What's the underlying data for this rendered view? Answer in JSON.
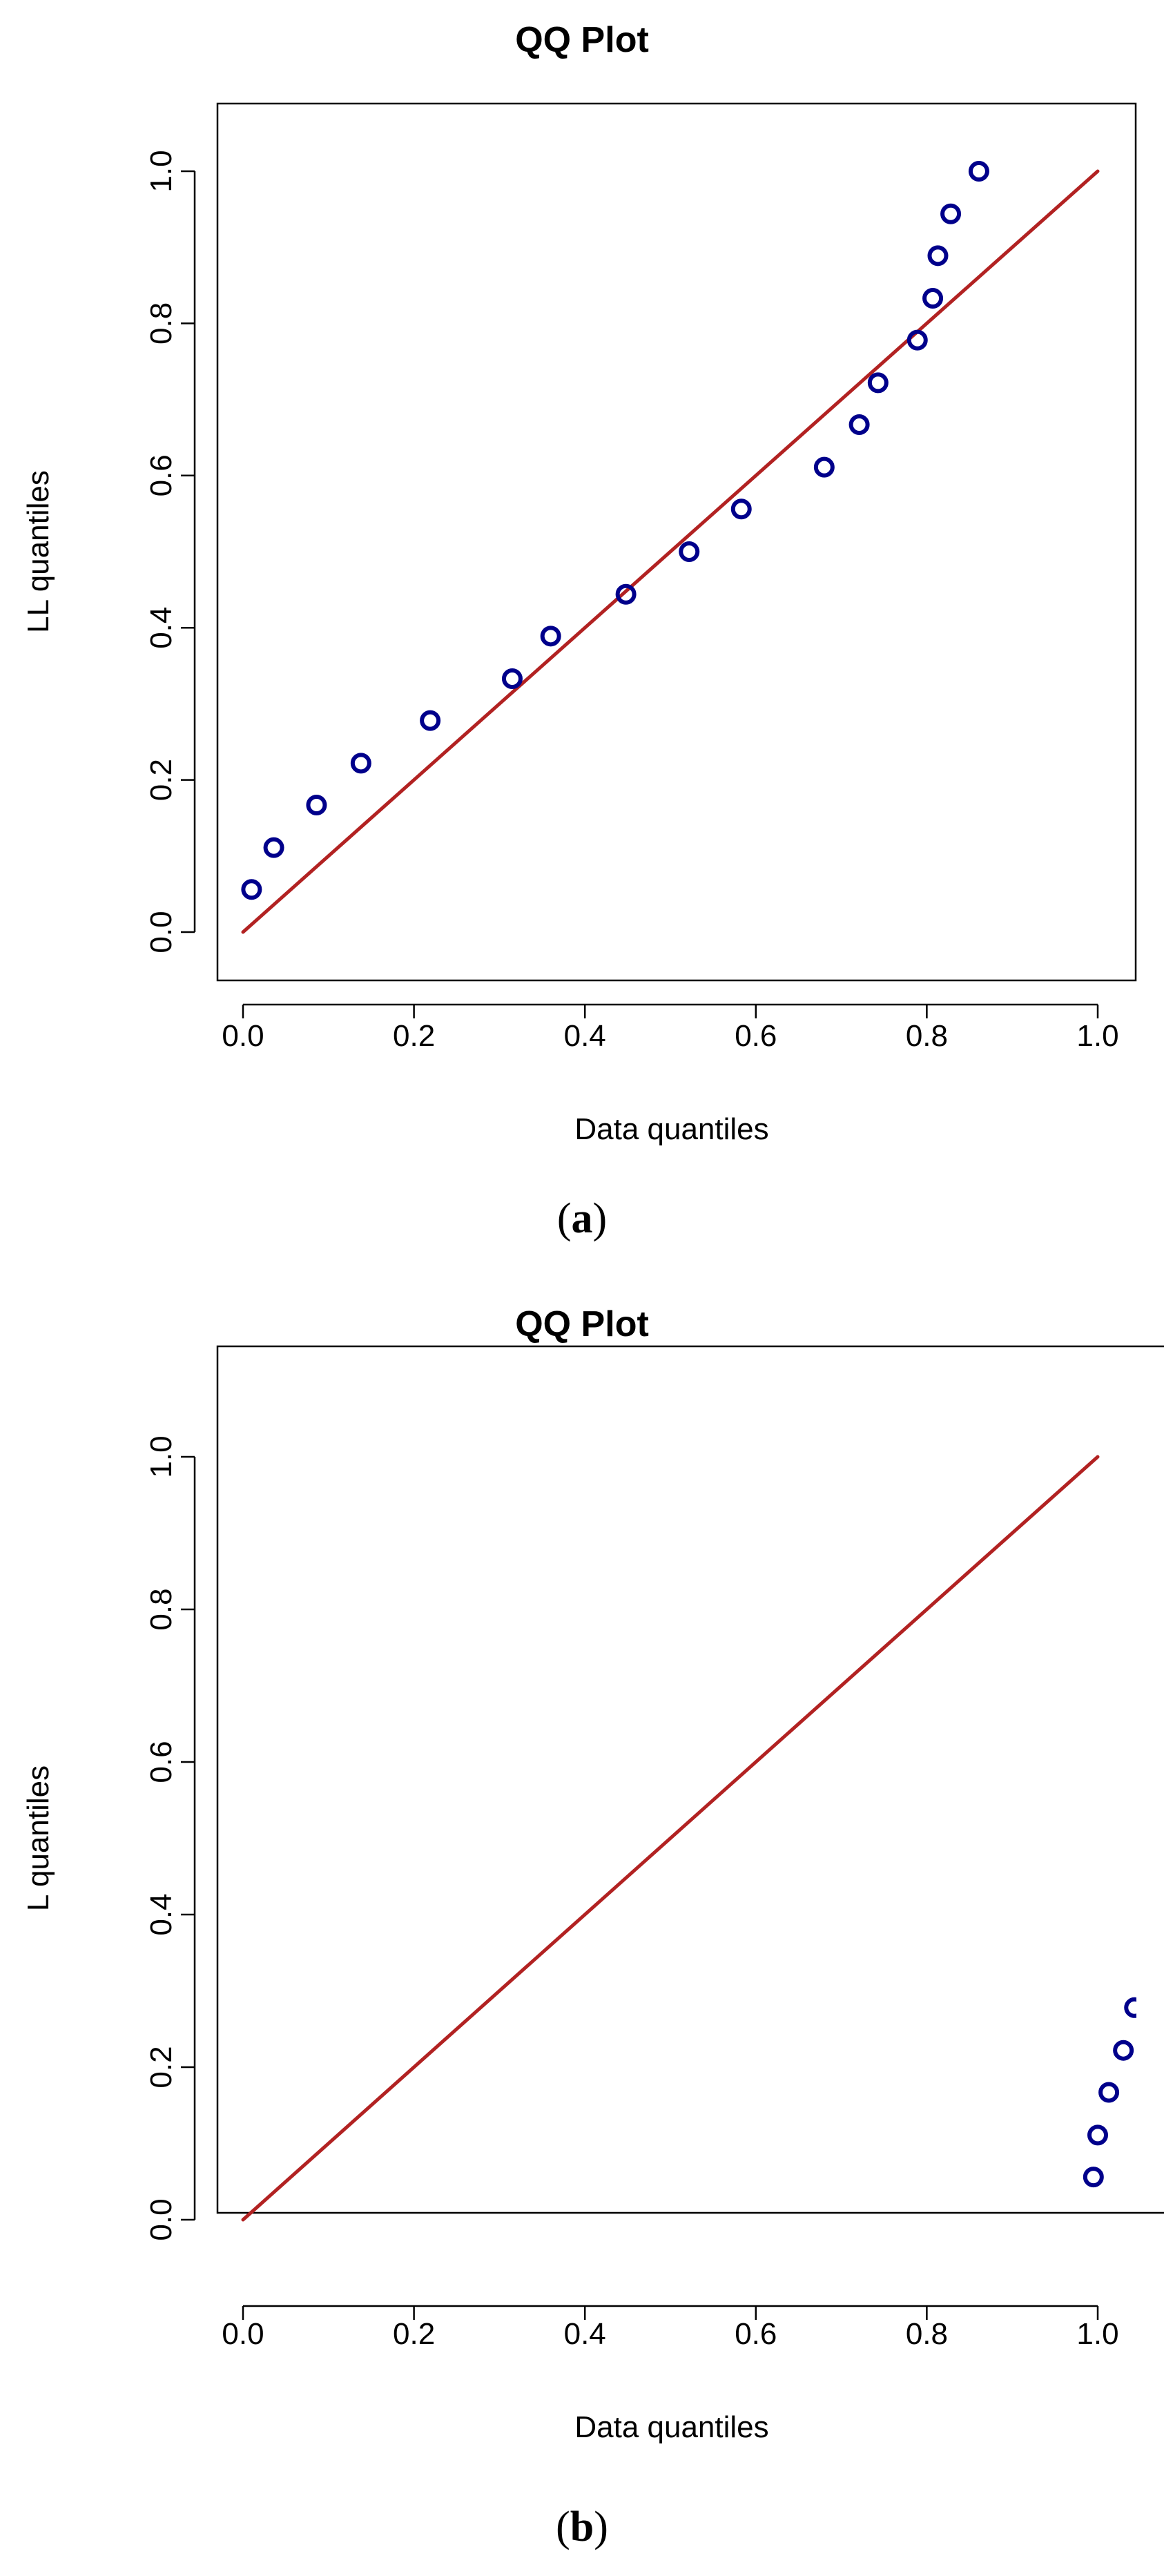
{
  "colors": {
    "points": "#00008b",
    "line": "#b22222",
    "axes": "#000000",
    "background": "#ffffff"
  },
  "chart_data": [
    {
      "type": "scatter",
      "panel": "a",
      "title": "QQ Plot",
      "xlabel": "Data quantiles",
      "ylabel": "LL quantiles",
      "caption_open": "(",
      "caption_letter": "a",
      "caption_close": ")",
      "xlim": [
        0.0,
        1.0
      ],
      "ylim": [
        0.0,
        1.0
      ],
      "xticks": [
        "0.0",
        "0.2",
        "0.4",
        "0.6",
        "0.8",
        "1.0"
      ],
      "yticks": [
        "0.0",
        "0.2",
        "0.4",
        "0.6",
        "0.8",
        "1.0"
      ],
      "reference_line": {
        "x": [
          0.0,
          1.0
        ],
        "y": [
          0.0,
          1.0
        ]
      },
      "points": {
        "x": [
          0.01,
          0.036,
          0.086,
          0.138,
          0.219,
          0.315,
          0.36,
          0.448,
          0.522,
          0.583,
          0.68,
          0.721,
          0.743,
          0.789,
          0.807,
          0.813,
          0.828,
          0.861
        ],
        "y": [
          0.056,
          0.111,
          0.167,
          0.222,
          0.278,
          0.333,
          0.389,
          0.444,
          0.5,
          0.556,
          0.611,
          0.667,
          0.722,
          0.778,
          0.833,
          0.889,
          0.944,
          1.0
        ]
      },
      "grid": false,
      "legend": "none"
    },
    {
      "type": "scatter",
      "panel": "b",
      "title": "QQ Plot",
      "xlabel": "Data quantiles",
      "ylabel": "L quantiles",
      "caption_open": "(",
      "caption_letter": "b",
      "caption_close": ")",
      "xlim": [
        0.0,
        1.0
      ],
      "ylim": [
        0.0,
        1.0
      ],
      "xticks": [
        "0.0",
        "0.2",
        "0.4",
        "0.6",
        "0.8",
        "1.0"
      ],
      "yticks": [
        "0.0",
        "0.2",
        "0.4",
        "0.6",
        "0.8",
        "1.0"
      ],
      "reference_line": {
        "x": [
          0.0,
          1.0
        ],
        "y": [
          0.0,
          1.0
        ]
      },
      "points": {
        "x": [
          0.995,
          1.0,
          1.013,
          1.03,
          1.043
        ],
        "y": [
          0.056,
          0.111,
          0.167,
          0.222,
          0.278
        ]
      },
      "grid": false,
      "legend": "none"
    }
  ]
}
